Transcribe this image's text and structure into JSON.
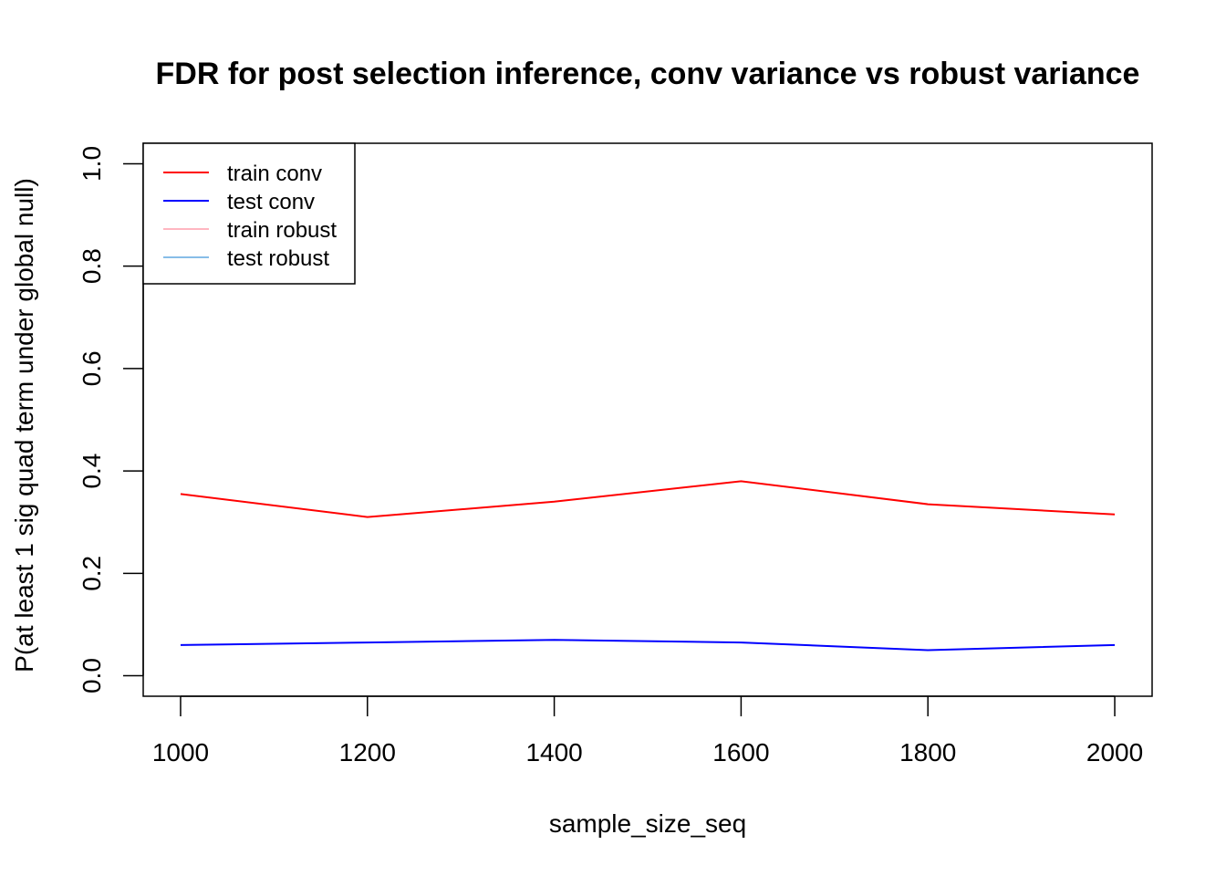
{
  "chart_data": {
    "type": "line",
    "title": "FDR for post selection inference, conv variance vs robust variance",
    "xlabel": "sample_size_seq",
    "ylabel": "P(at least 1 sig quad term under global null)",
    "x": [
      1000,
      1200,
      1400,
      1600,
      1800,
      2000
    ],
    "series": [
      {
        "name": "train conv",
        "color": "#ff0000",
        "values": [
          0.355,
          0.31,
          0.34,
          0.38,
          0.335,
          0.315
        ]
      },
      {
        "name": "test conv",
        "color": "#0000ff",
        "values": [
          0.06,
          0.065,
          0.07,
          0.065,
          0.05,
          0.06
        ]
      },
      {
        "name": "train robust",
        "color": "#ffb6c1",
        "values": [
          null,
          null,
          null,
          null,
          null,
          null
        ]
      },
      {
        "name": "test robust",
        "color": "#87bde8",
        "values": [
          null,
          null,
          null,
          null,
          null,
          null
        ]
      }
    ],
    "xlim": [
      960,
      2040
    ],
    "xticks": [
      1000,
      1200,
      1400,
      1600,
      1800,
      2000
    ],
    "ylim": [
      -0.04,
      1.04
    ],
    "yticks": [
      {
        "value": 0,
        "label": "0.0"
      },
      0.2,
      0.4,
      0.6,
      0.8,
      {
        "value": 1,
        "label": "1.0"
      }
    ],
    "grid": false,
    "legend": "top-left"
  }
}
